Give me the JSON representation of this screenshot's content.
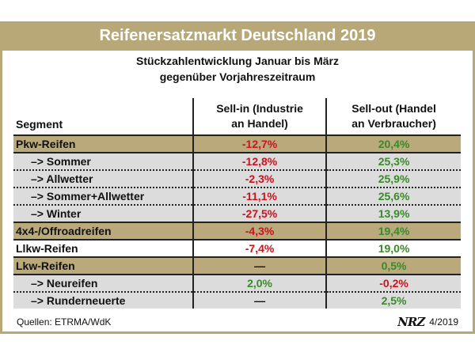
{
  "title": "Reifenersatzmarkt Deutschland 2019",
  "subtitle_lines": [
    "Stückzahlentwicklung Januar bis März",
    "gegenüber Vorjahreszeitraum"
  ],
  "table": {
    "headers": {
      "segment": "Segment",
      "sell_in_line1": "Sell-in (Industrie",
      "sell_in_line2": "an Handel)",
      "sell_out_line1": "Sell-out (Handel",
      "sell_out_line2": "an Verbraucher)"
    },
    "rows": [
      {
        "segment": "Pkw-Reifen",
        "sell_in": "-12,7%",
        "sell_out": "20,4%",
        "type": "category"
      },
      {
        "segment": "–> Sommer",
        "sell_in": "-12,8%",
        "sell_out": "25,3%",
        "type": "sub"
      },
      {
        "segment": "–> Allwetter",
        "sell_in": "-2,3%",
        "sell_out": "25,9%",
        "type": "sub"
      },
      {
        "segment": "–> Sommer+Allwetter",
        "sell_in": "-11,1%",
        "sell_out": "25,6%",
        "type": "sub"
      },
      {
        "segment": "–> Winter",
        "sell_in": "-27,5%",
        "sell_out": "13,9%",
        "type": "sub"
      },
      {
        "segment": "4x4-/Offroadreifen",
        "sell_in": "-4,3%",
        "sell_out": "19,4%",
        "type": "category"
      },
      {
        "segment": "Llkw-Reifen",
        "sell_in": "-7,4%",
        "sell_out": "19,0%",
        "type": "plain"
      },
      {
        "segment": "Lkw-Reifen",
        "sell_in": "—",
        "sell_out": "0,5%",
        "type": "category"
      },
      {
        "segment": "–> Neureifen",
        "sell_in": "2,0%",
        "sell_out": "-0,2%",
        "type": "sub"
      },
      {
        "segment": "–> Runderneuerte",
        "sell_in": "—",
        "sell_out": "2,5%",
        "type": "sub"
      }
    ]
  },
  "footer": {
    "source": "Quellen: ETRMA/WdK",
    "logo": "NRZ",
    "issue": "4/2019"
  },
  "colors": {
    "frame": "#b8a878",
    "category_row": "#b9a97b",
    "sub_row": "#dcdcdc",
    "negative": "#c8141e",
    "positive": "#3a8a2a"
  }
}
